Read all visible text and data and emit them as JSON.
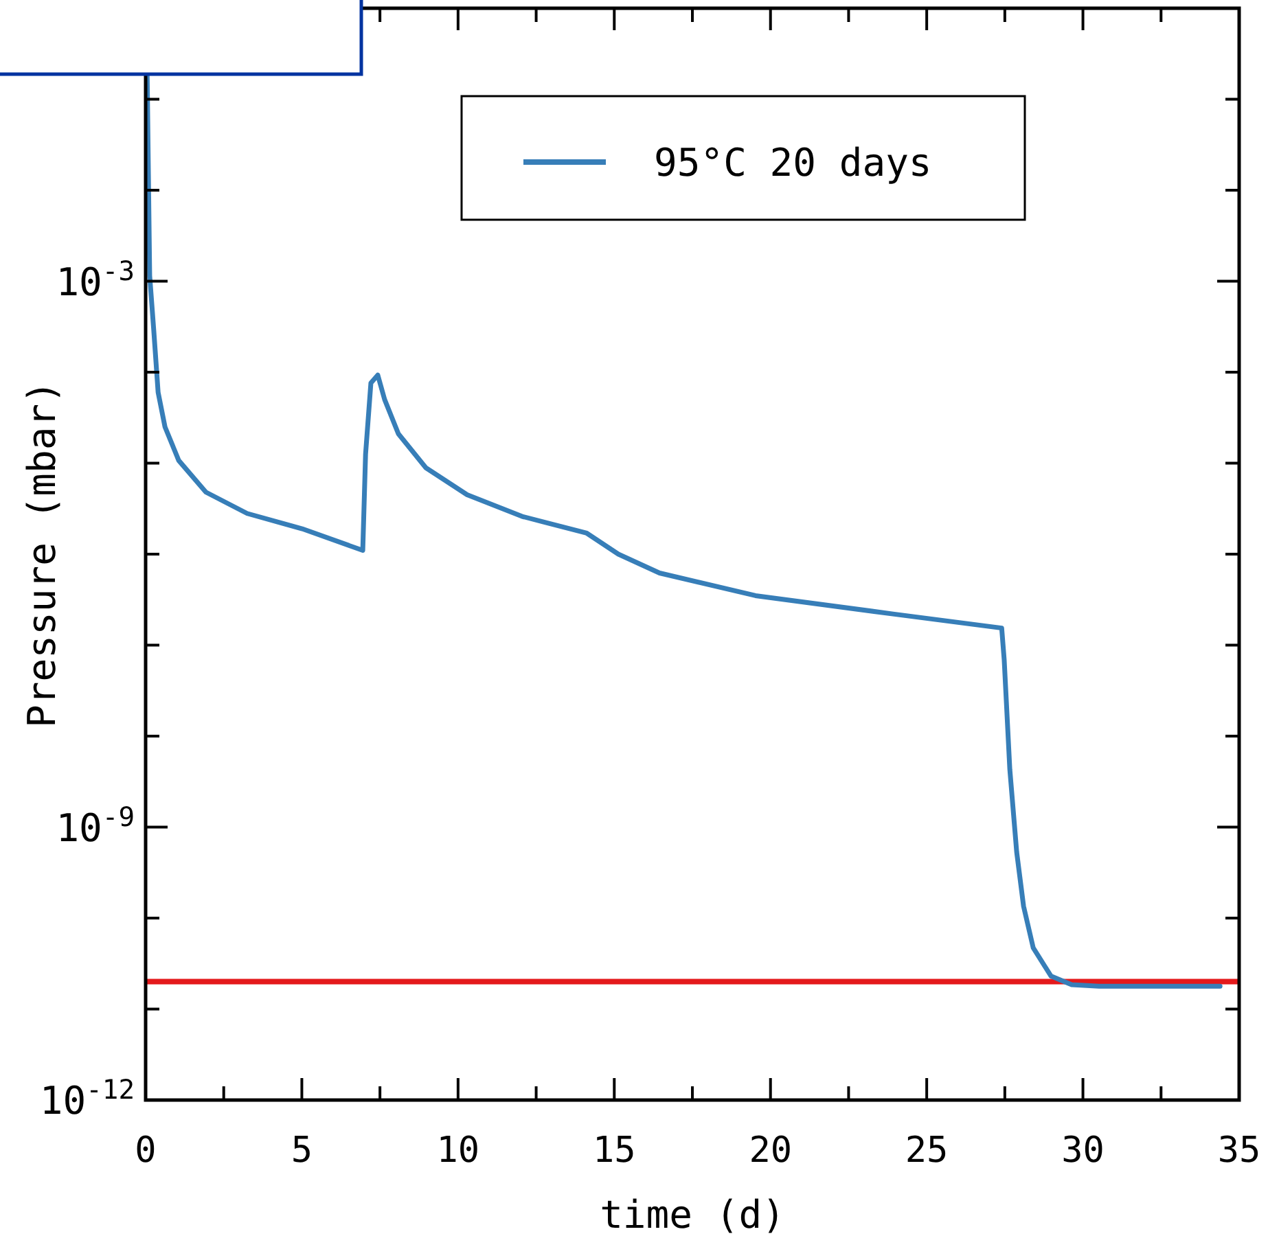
{
  "chart_data": {
    "type": "line",
    "xlabel": "time (d)",
    "ylabel": "Pressure (mbar)",
    "log": "y",
    "xlim": [
      0,
      35
    ],
    "ylim": [
      1e-12,
      1
    ],
    "xticks": [
      0,
      {
        "value": 2.5,
        "label": null
      },
      5,
      {
        "value": 7.5,
        "label": null
      },
      10,
      {
        "value": 12.5,
        "label": null
      },
      15,
      {
        "value": 17.5,
        "label": null
      },
      20,
      {
        "value": 22.5,
        "label": null
      },
      25,
      {
        "value": 27.5,
        "label": null
      },
      30,
      {
        "value": 32.5,
        "label": null
      },
      35
    ],
    "yticks": [
      {
        "value": 1e-12,
        "label": "10$^{-12}$"
      },
      {
        "value": 1e-11,
        "label": null
      },
      {
        "value": 1e-10,
        "label": null
      },
      {
        "value": 1e-09,
        "label": "10$^{-9}$"
      },
      {
        "value": 1e-08,
        "label": null
      },
      {
        "value": 1e-07,
        "label": null
      },
      {
        "value": 1e-06,
        "label": null
      },
      {
        "value": 1e-05,
        "label": null
      },
      {
        "value": 0.0001,
        "label": null
      },
      {
        "value": 0.001,
        "label": "10$^{-3}$"
      },
      {
        "value": 0.01,
        "label": null
      },
      {
        "value": 0.1,
        "label": null
      },
      {
        "value": 1,
        "label": null
      }
    ],
    "grid": false,
    "legend": "top right",
    "line_style": "solid",
    "marker": "none",
    "ref_lines": [
      {
        "axis": "y",
        "value": 2e-11,
        "color": "#e41a1c"
      }
    ],
    "series": [
      {
        "name": "95°C 20 days",
        "color": "#377eb8",
        "x": [
          0.05,
          0.13,
          0.26,
          0.4,
          0.62,
          1.06,
          1.93,
          3.25,
          5.01,
          6.95,
          7.04,
          7.21,
          7.43,
          7.65,
          8.09,
          8.97,
          10.29,
          12.05,
          14.12,
          15.13,
          16.45,
          19.52,
          23.92,
          27.4,
          27.48,
          27.66,
          27.88,
          28.1,
          28.41,
          28.98,
          29.64,
          30.52,
          34.39
        ],
        "values": [
          0.18,
          0.00115,
          0.00029,
          6e-05,
          2.5e-05,
          1.07e-05,
          4.8e-06,
          2.8e-06,
          1.9e-06,
          1.1e-06,
          1.26e-05,
          7.6e-05,
          9.3e-05,
          5e-05,
          2.1e-05,
          8.9e-06,
          4.5e-06,
          2.6e-06,
          1.7e-06,
          1e-06,
          6.2e-07,
          3.5e-07,
          2.2e-07,
          1.54e-07,
          6.9e-08,
          4.3e-09,
          5.3e-10,
          1.35e-10,
          4.7e-11,
          2.3e-11,
          1.85e-11,
          1.78e-11,
          1.78e-11
        ]
      }
    ]
  }
}
